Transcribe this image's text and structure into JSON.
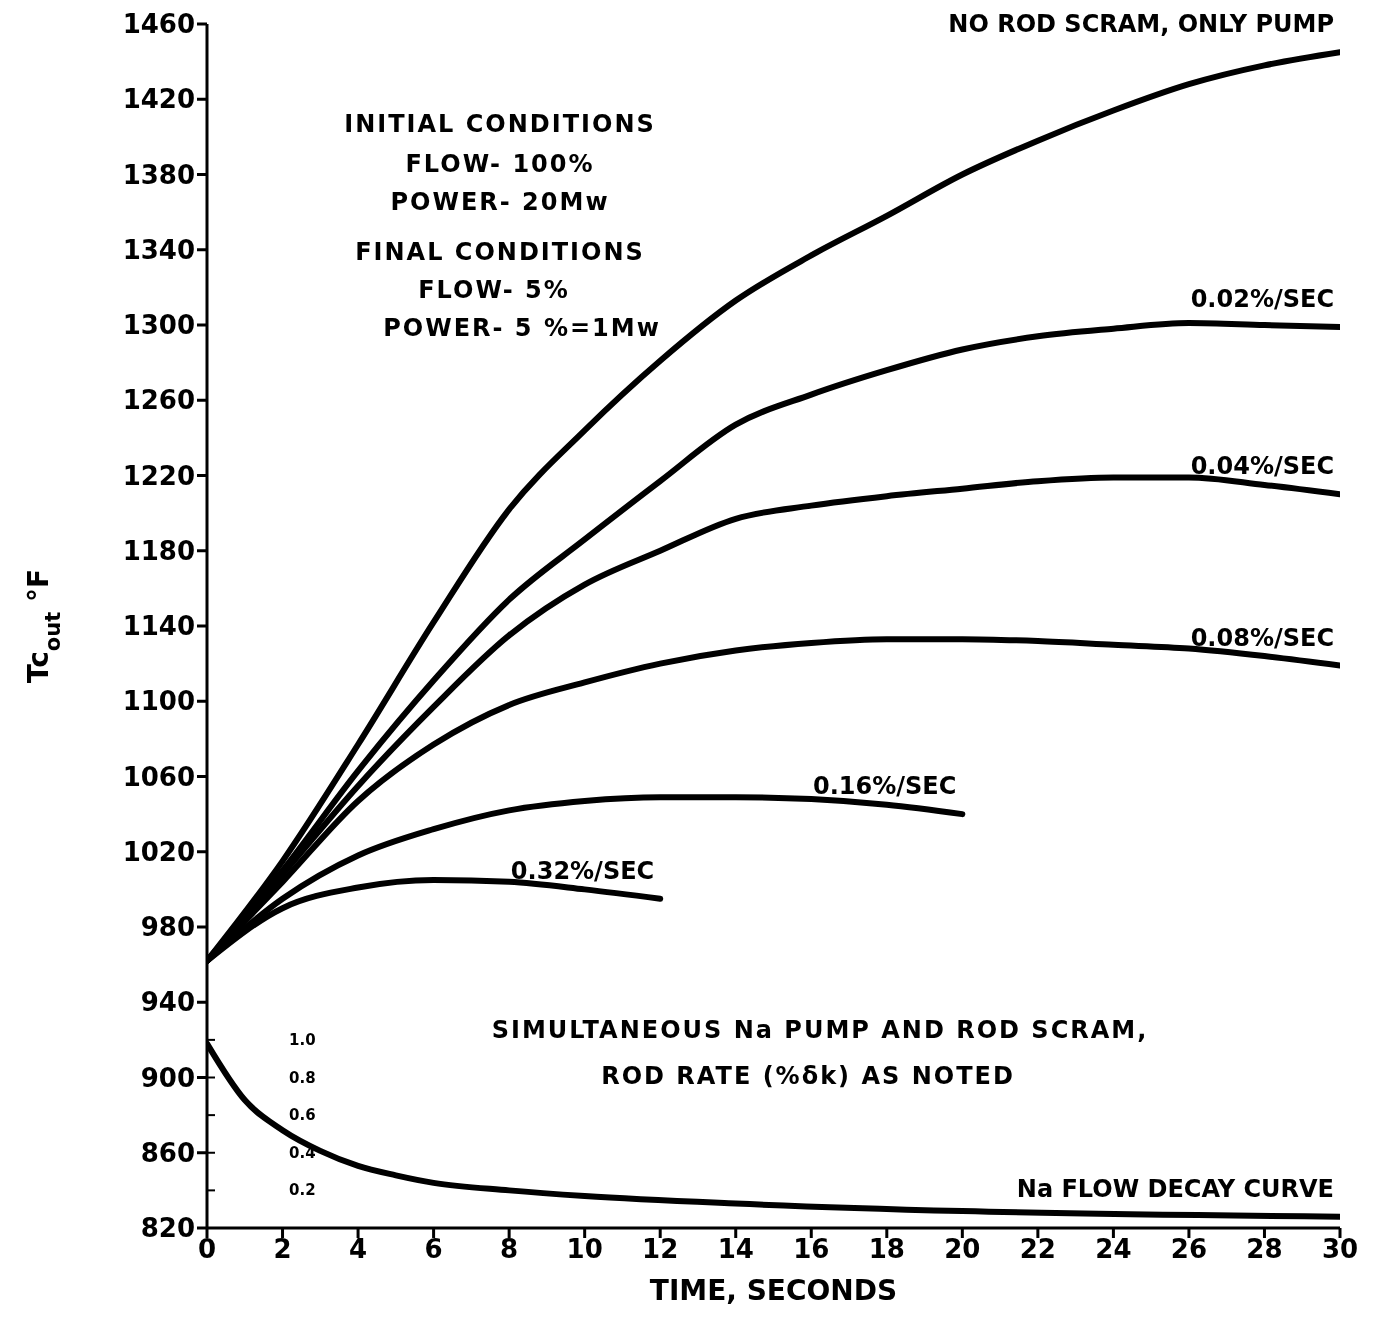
{
  "chart_data": {
    "type": "line",
    "xlabel": "TIME, SECONDS",
    "ylabel": "Tc$_{out}$ °F",
    "xlim": [
      0,
      30
    ],
    "xticks": [
      0,
      2,
      4,
      6,
      8,
      10,
      12,
      14,
      16,
      18,
      20,
      22,
      24,
      26,
      28,
      30
    ],
    "ylim": [
      820,
      1460
    ],
    "yticks": [
      820,
      860,
      900,
      940,
      980,
      1020,
      1060,
      1100,
      1140,
      1180,
      1220,
      1260,
      1300,
      1340,
      1380,
      1420,
      1460
    ],
    "y2lim": [
      0,
      6.4
    ],
    "y2ticks": [
      {
        "value": 0.2,
        "label": "0.2"
      },
      {
        "value": 0.4,
        "label": "0.4"
      },
      {
        "value": 0.6,
        "label": "0.6"
      },
      {
        "value": 0.8,
        "label": "0.8"
      },
      {
        "value": 1,
        "label": "1.0"
      }
    ],
    "grid": false,
    "legend": false,
    "marker": "none",
    "line_style": "solid",
    "x": [
      0,
      2,
      4,
      6,
      8,
      10,
      12,
      14,
      16,
      18,
      20,
      22,
      24,
      26,
      28,
      30
    ],
    "series": [
      {
        "name": "NO ROD SCRAM, ONLY PUMP",
        "color": "#000000",
        "values": [
          962,
          1015,
          1077,
          1142,
          1202,
          1244,
          1281,
          1313,
          1337,
          1358,
          1380,
          1398,
          1414,
          1428,
          1438,
          1445
        ]
      },
      {
        "name": "0.02%/SEC",
        "color": "#000000",
        "values": [
          962,
          1010,
          1063,
          1111,
          1154,
          1186,
          1217,
          1247,
          1263,
          1276,
          1287,
          1294,
          1298,
          1301,
          1300,
          1299
        ]
      },
      {
        "name": "0.04%/SEC",
        "color": "#000000",
        "values": [
          962,
          1008,
          1055,
          1097,
          1135,
          1162,
          1180,
          1197,
          1204,
          1209,
          1213,
          1217,
          1219,
          1219,
          1215,
          1210
        ]
      },
      {
        "name": "0.08%/SEC",
        "color": "#000000",
        "values": [
          962,
          1004,
          1047,
          1077,
          1098,
          1110,
          1120,
          1127,
          1131,
          1133,
          1133,
          1132,
          1130,
          1128,
          1124,
          1119
        ]
      },
      {
        "name": "0.16%/SEC",
        "color": "#000000",
        "x": [
          0,
          2,
          4,
          6,
          8,
          10,
          12,
          14,
          16,
          18,
          20
        ],
        "values": [
          962,
          995,
          1018,
          1032,
          1042,
          1047,
          1049,
          1049,
          1048,
          1045,
          1040
        ]
      },
      {
        "name": "0.32%/SEC",
        "color": "#000000",
        "x": [
          0,
          2,
          4,
          6,
          8,
          10,
          12
        ],
        "values": [
          962,
          990,
          1001,
          1005,
          1004,
          1000,
          995
        ]
      },
      {
        "name": "Na FLOW DECAY CURVE",
        "color": "#000000",
        "axis": "y2",
        "x": [
          0,
          1,
          2,
          3,
          4,
          5,
          6,
          8,
          10,
          14,
          20,
          30
        ],
        "values": [
          0.98,
          0.68,
          0.52,
          0.41,
          0.33,
          0.28,
          0.24,
          0.2,
          0.17,
          0.13,
          0.09,
          0.06
        ]
      }
    ],
    "annotations": [
      "INITIAL CONDITIONS",
      "FLOW- 100%",
      "POWER- 20Mw",
      "FINAL CONDITIONS",
      "FLOW- 5%",
      "POWER- 5 %=1Mw",
      "SIMULTANEOUS Na PUMP AND ROD SCRAM,",
      "ROD RATE (%δk) AS NOTED"
    ]
  }
}
